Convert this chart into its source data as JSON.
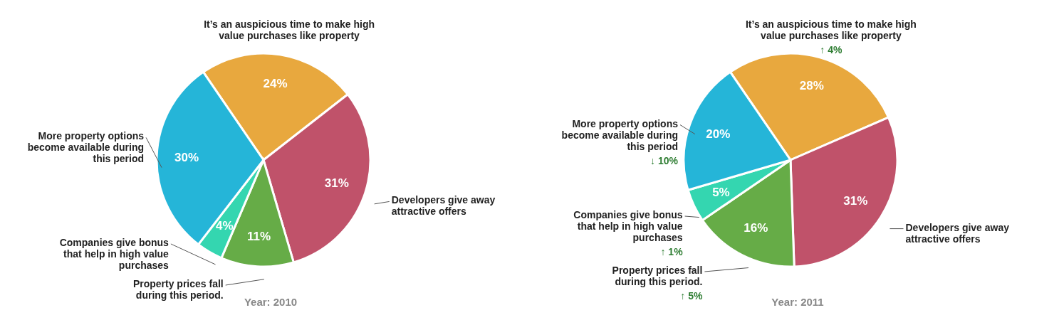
{
  "chart_data": [
    {
      "type": "pie",
      "title": "Year: 2010",
      "categories": [
        "It’s an auspicious time to make high value purchases like property",
        "Developers give away attractive offers",
        "Property prices fall during this period.",
        "Companies give bonus that help in high value purchases",
        "More property options become available during this period"
      ],
      "values": [
        24,
        31,
        11,
        4,
        30
      ],
      "value_labels": [
        "24%",
        "31%",
        "11%",
        "4%",
        "30%"
      ],
      "colors": [
        "#e8a83e",
        "#c0526a",
        "#66ac47",
        "#34d6b0",
        "#25b5d8"
      ]
    },
    {
      "type": "pie",
      "title": "Year: 2011",
      "categories": [
        "It’s an auspicious time to make high value purchases like property",
        "Developers give away attractive offers",
        "Property prices fall during this period.",
        "Companies give bonus that help in high value purchases",
        "More property options become available during this period"
      ],
      "values": [
        28,
        31,
        16,
        5,
        20
      ],
      "value_labels": [
        "28%",
        "31%",
        "16%",
        "5%",
        "20%"
      ],
      "colors": [
        "#e8a83e",
        "#c0526a",
        "#66ac47",
        "#34d6b0",
        "#25b5d8"
      ],
      "annotations": [
        {
          "text": "↑ 4%",
          "x": "It’s an auspicious time to make high value purchases like property"
        },
        {
          "text": "↓ 10%",
          "x": "More property options become available during this period"
        },
        {
          "text": "↑ 1%",
          "x": "Companies give bonus that help in high value purchases"
        },
        {
          "text": "↑ 5%",
          "x": "Property prices fall during this period."
        }
      ]
    }
  ]
}
